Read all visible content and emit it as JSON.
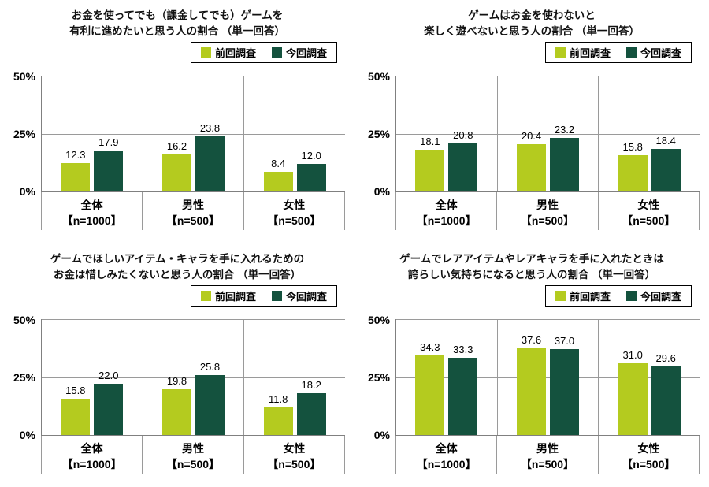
{
  "page": {
    "background": "#ffffff"
  },
  "colors": {
    "prev": "#b4cb1f",
    "current": "#14523e",
    "grid": "#9a9a9a",
    "axis": "#808080",
    "text": "#000000"
  },
  "legend": {
    "prev_label": "前回調査",
    "current_label": "今回調査"
  },
  "chart_data": [
    {
      "type": "bar",
      "title": "お金を使ってでも（課金してでも）ゲームを有利に進めたいと思う人の割合 （単一回答）",
      "title_lines": [
        "お金を使ってでも（課金してでも）ゲームを",
        "有利に進めたいと思う人の割合 （単一回答）"
      ],
      "categories": [
        "全体",
        "男性",
        "女性"
      ],
      "category_ns": [
        "【n=1000】",
        "【n=500】",
        "【n=500】"
      ],
      "ylim": [
        0,
        50
      ],
      "yticks": [
        "50%",
        "25%",
        "0%"
      ],
      "legend_position": "top-right",
      "grid": true,
      "series": [
        {
          "name": "前回調査",
          "values": [
            12.3,
            16.2,
            8.4
          ],
          "labels": [
            "12.3",
            "16.2",
            "8.4"
          ]
        },
        {
          "name": "今回調査",
          "values": [
            17.9,
            23.8,
            12.0
          ],
          "labels": [
            "17.9",
            "23.8",
            "12.0"
          ]
        }
      ]
    },
    {
      "type": "bar",
      "title": "ゲームはお金を使わないと楽しく遊べないと思う人の割合 （単一回答）",
      "title_lines": [
        "ゲームはお金を使わないと",
        "楽しく遊べないと思う人の割合 （単一回答）"
      ],
      "categories": [
        "全体",
        "男性",
        "女性"
      ],
      "category_ns": [
        "【n=1000】",
        "【n=500】",
        "【n=500】"
      ],
      "ylim": [
        0,
        50
      ],
      "yticks": [
        "50%",
        "25%",
        "0%"
      ],
      "legend_position": "top-right",
      "grid": true,
      "series": [
        {
          "name": "前回調査",
          "values": [
            18.1,
            20.4,
            15.8
          ],
          "labels": [
            "18.1",
            "20.4",
            "15.8"
          ]
        },
        {
          "name": "今回調査",
          "values": [
            20.8,
            23.2,
            18.4
          ],
          "labels": [
            "20.8",
            "23.2",
            "18.4"
          ]
        }
      ]
    },
    {
      "type": "bar",
      "title": "ゲームでほしいアイテム・キャラを手に入れるためのお金は惜しみたくないと思う人の割合 （単一回答）",
      "title_lines": [
        "ゲームでほしいアイテム・キャラを手に入れるための",
        "お金は惜しみたくないと思う人の割合 （単一回答）"
      ],
      "categories": [
        "全体",
        "男性",
        "女性"
      ],
      "category_ns": [
        "【n=1000】",
        "【n=500】",
        "【n=500】"
      ],
      "ylim": [
        0,
        50
      ],
      "yticks": [
        "50%",
        "25%",
        "0%"
      ],
      "legend_position": "top-right",
      "grid": true,
      "series": [
        {
          "name": "前回調査",
          "values": [
            15.8,
            19.8,
            11.8
          ],
          "labels": [
            "15.8",
            "19.8",
            "11.8"
          ]
        },
        {
          "name": "今回調査",
          "values": [
            22.0,
            25.8,
            18.2
          ],
          "labels": [
            "22.0",
            "25.8",
            "18.2"
          ]
        }
      ]
    },
    {
      "type": "bar",
      "title": "ゲームでレアアイテムやレアキャラを手に入れたときは誇らしい気持ちになると思う人の割合 （単一回答）",
      "title_lines": [
        "ゲームでレアアイテムやレアキャラを手に入れたときは",
        "誇らしい気持ちになると思う人の割合 （単一回答）"
      ],
      "categories": [
        "全体",
        "男性",
        "女性"
      ],
      "category_ns": [
        "【n=1000】",
        "【n=500】",
        "【n=500】"
      ],
      "ylim": [
        0,
        50
      ],
      "yticks": [
        "50%",
        "25%",
        "0%"
      ],
      "legend_position": "top-right",
      "grid": true,
      "series": [
        {
          "name": "前回調査",
          "values": [
            34.3,
            37.6,
            31.0
          ],
          "labels": [
            "34.3",
            "37.6",
            "31.0"
          ]
        },
        {
          "name": "今回調査",
          "values": [
            33.3,
            37.0,
            29.6
          ],
          "labels": [
            "33.3",
            "37.0",
            "29.6"
          ]
        }
      ]
    }
  ]
}
